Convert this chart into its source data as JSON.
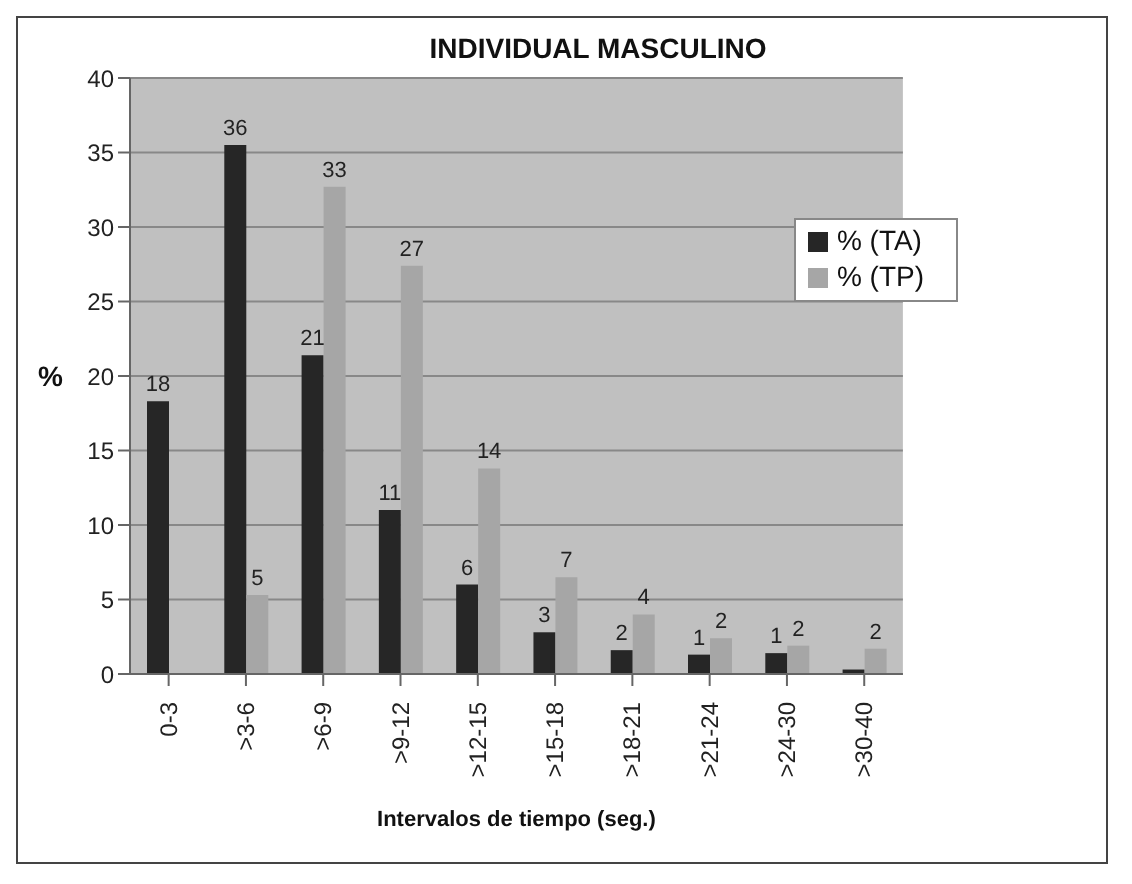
{
  "chart_data": {
    "type": "bar",
    "title": "INDIVIDUAL MASCULINO",
    "xlabel": "Intervalos de tiempo (seg.)",
    "ylabel": "%",
    "categories": [
      "0-3",
      ">3-6",
      ">6-9",
      ">9-12",
      ">12-15",
      ">15-18",
      ">18-21",
      ">21-24",
      ">24-30",
      ">30-40"
    ],
    "series": [
      {
        "name": "% (TA)",
        "color": "#262626",
        "values": [
          18.3,
          35.5,
          21.4,
          11,
          6,
          2.8,
          1.6,
          1.3,
          1.4,
          0.3
        ],
        "value_labels": [
          "18",
          "36",
          "21",
          "11",
          "6",
          "3",
          "2",
          "1",
          "1",
          null
        ]
      },
      {
        "name": "% (TP)",
        "color": "#a6a6a6",
        "values": [
          null,
          5.3,
          32.7,
          27.4,
          13.8,
          6.5,
          4,
          2.4,
          1.9,
          1.7
        ],
        "value_labels": [
          null,
          "5",
          "33",
          "27",
          "14",
          "7",
          "4",
          "2",
          "2",
          "2"
        ]
      }
    ],
    "ylim": [
      0,
      40
    ],
    "yticks": [
      0,
      5,
      10,
      15,
      20,
      25,
      30,
      35,
      40
    ],
    "grid": "y",
    "legend": "top right"
  }
}
